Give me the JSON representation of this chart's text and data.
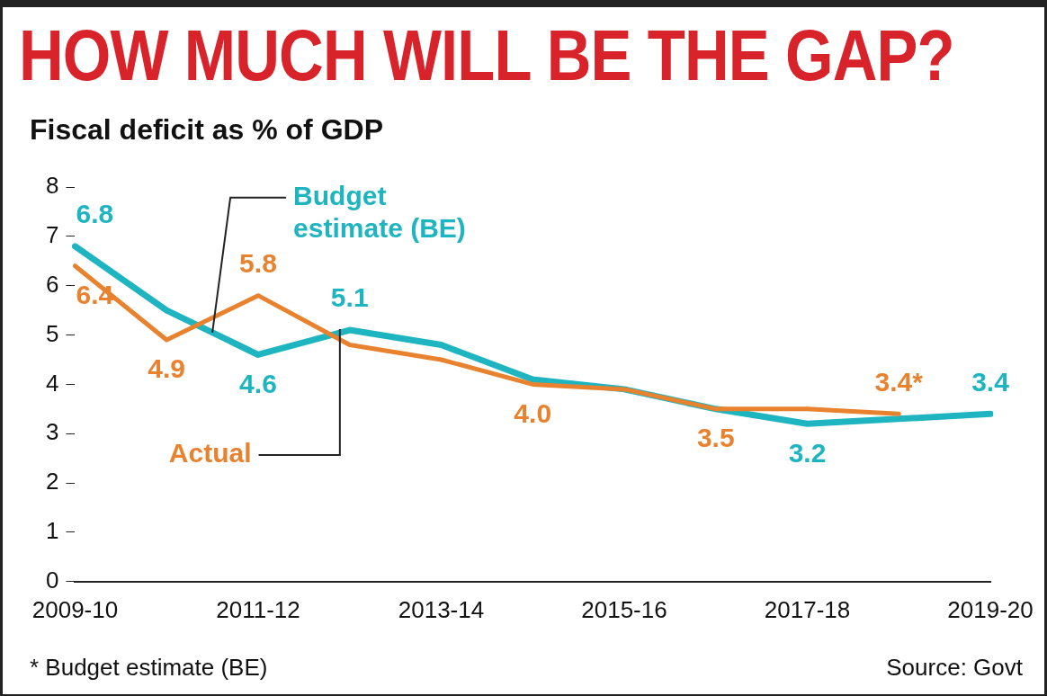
{
  "chart_data": {
    "type": "line",
    "title": "HOW MUCH WILL BE THE GAP?",
    "subtitle": "Fiscal deficit as % of GDP",
    "categories": [
      "2009-10",
      null,
      "2011-12",
      null,
      "2013-14",
      null,
      "2015-16",
      null,
      "2017-18",
      null,
      "2019-20"
    ],
    "series": [
      {
        "name": "Budget estimate (BE)",
        "color": "#1fb5c0",
        "values": [
          6.8,
          5.5,
          4.6,
          5.1,
          4.8,
          4.1,
          3.9,
          3.5,
          3.2,
          3.3,
          3.4
        ],
        "value_labels": [
          "6.8",
          null,
          "4.6",
          "5.1",
          null,
          null,
          null,
          null,
          "3.2",
          null,
          "3.4"
        ]
      },
      {
        "name": "Actual",
        "color": "#e8822e",
        "values": [
          6.4,
          4.9,
          5.8,
          4.8,
          4.5,
          4.0,
          3.9,
          3.5,
          3.5,
          3.4,
          null
        ],
        "value_labels": [
          "6.4",
          "4.9",
          "5.8",
          null,
          null,
          "4.0",
          null,
          "3.5",
          null,
          "3.4*",
          null
        ]
      }
    ],
    "ylim": [
      0,
      8
    ],
    "yticks": [
      0,
      1,
      2,
      3,
      4,
      5,
      6,
      7,
      8
    ],
    "grid": false,
    "legend": false,
    "marker": "none",
    "line_style": "solid",
    "annotations": [
      "* Budget estimate (BE)",
      "Source: Govt"
    ]
  }
}
